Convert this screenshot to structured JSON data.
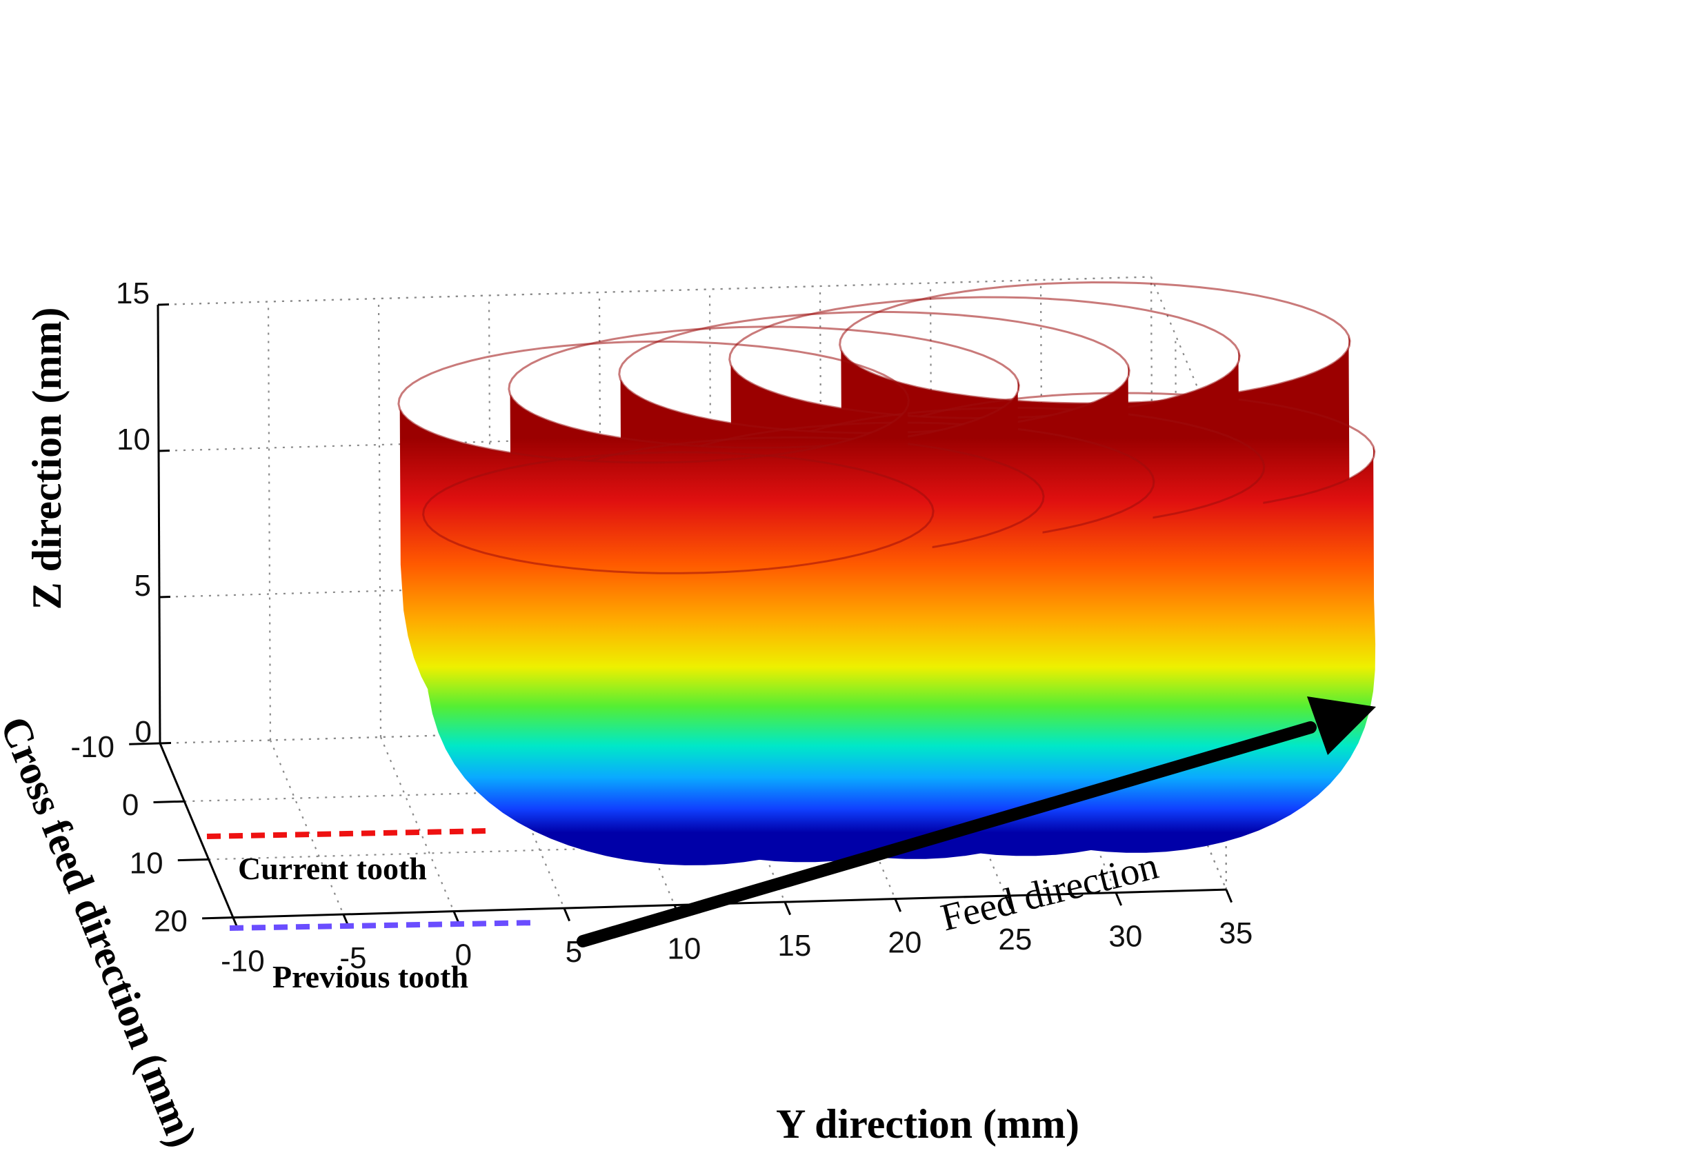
{
  "chart_data": {
    "type": "surface3d",
    "title": "",
    "xlabel": "Y direction (mm)",
    "ylabel": "Cross feed direction (mm)",
    "zlabel": "Z direction (mm)",
    "x_ticks": [
      "-10",
      "-5",
      "0",
      "5",
      "10",
      "15",
      "20",
      "25",
      "30",
      "35"
    ],
    "y_ticks": [
      "-10",
      "0",
      "10",
      "20"
    ],
    "z_ticks": [
      "0",
      "5",
      "10",
      "15"
    ],
    "xlim": [
      -10,
      35
    ],
    "ylim": [
      -10,
      20
    ],
    "zlim": [
      0,
      15
    ],
    "colormap": "jet",
    "grid": true,
    "teeth_passes": [
      {
        "name": "Current tooth",
        "feed_positions": [
          0,
          5,
          10,
          15,
          20
        ],
        "cross_feed": 0,
        "top_z": 12.0
      },
      {
        "name": "Previous tooth",
        "feed_positions": [
          0,
          5,
          10,
          15,
          20
        ],
        "cross_feed": 10,
        "top_z": 10.2
      }
    ],
    "annotations": [
      {
        "text": "Current tooth",
        "color": "#ee1111",
        "cross_feed": 0
      },
      {
        "text": "Previous tooth",
        "color": "#6a4dff",
        "cross_feed": 10
      },
      {
        "text": "Feed direction",
        "type": "arrow"
      }
    ]
  }
}
